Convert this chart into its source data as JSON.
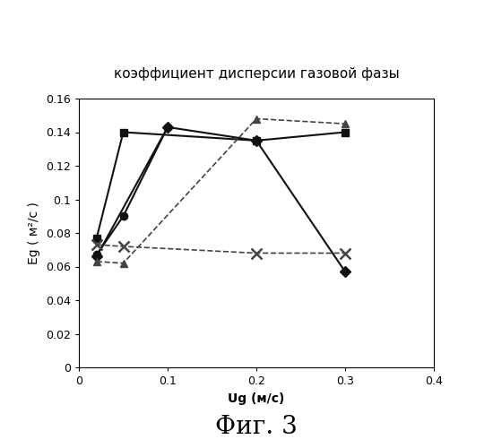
{
  "title": "коэффициент дисперсии газовой фазы",
  "xlabel": "Ug (м/с)",
  "ylabel": "Eg ( м²/с )",
  "fig_label": "Фиг. 3",
  "xlim": [
    0,
    0.4
  ],
  "ylim": [
    0,
    0.16
  ],
  "xticks": [
    0,
    0.1,
    0.2,
    0.3,
    0.4
  ],
  "yticks": [
    0,
    0.02,
    0.04,
    0.06,
    0.08,
    0.1,
    0.12,
    0.14,
    0.16
  ],
  "series": [
    {
      "label": "square_solid",
      "x": [
        0.02,
        0.05,
        0.2,
        0.3
      ],
      "y": [
        0.077,
        0.14,
        0.135,
        0.14
      ],
      "marker": "s",
      "linestyle": "-",
      "color": "#111111",
      "markersize": 6,
      "linewidth": 1.5
    },
    {
      "label": "circle_solid",
      "x": [
        0.02,
        0.05,
        0.1
      ],
      "y": [
        0.067,
        0.09,
        0.143
      ],
      "marker": "o",
      "linestyle": "-",
      "color": "#111111",
      "markersize": 6,
      "linewidth": 1.5
    },
    {
      "label": "diamond_solid",
      "x": [
        0.02,
        0.1,
        0.2,
        0.3
      ],
      "y": [
        0.066,
        0.143,
        0.135,
        0.057
      ],
      "marker": "D",
      "linestyle": "-",
      "color": "#111111",
      "markersize": 6,
      "linewidth": 1.5
    },
    {
      "label": "triangle_dashed",
      "x": [
        0.02,
        0.05,
        0.2,
        0.3
      ],
      "y": [
        0.063,
        0.062,
        0.148,
        0.145
      ],
      "marker": "^",
      "linestyle": "--",
      "color": "#444444",
      "markersize": 6,
      "linewidth": 1.2
    },
    {
      "label": "x_dashed",
      "x": [
        0.02,
        0.05,
        0.2,
        0.3
      ],
      "y": [
        0.073,
        0.072,
        0.068,
        0.068
      ],
      "marker": "x",
      "linestyle": "--",
      "color": "#444444",
      "markersize": 8,
      "markeredgewidth": 1.8,
      "linewidth": 1.2
    }
  ],
  "background_color": "#ffffff",
  "title_fontsize": 11,
  "xlabel_fontsize": 10,
  "ylabel_fontsize": 10,
  "tick_fontsize": 9,
  "fig_label_fontsize": 20
}
